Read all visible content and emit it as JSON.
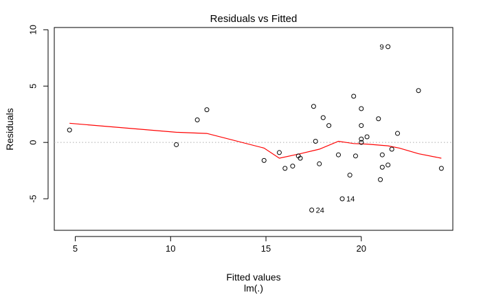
{
  "chart_data": {
    "type": "scatter",
    "title": "Residuals vs Fitted",
    "xlabel": "Fitted values",
    "xlabel_sub": "lm(.)",
    "ylabel": "Residuals",
    "xlim": [
      3.9,
      24.8
    ],
    "ylim": [
      -7.8,
      10.2
    ],
    "x_ticks": [
      5,
      10,
      15,
      20
    ],
    "x_tick_labels": [
      "5",
      "10",
      "15",
      "20"
    ],
    "y_ticks": [
      -5,
      0,
      5,
      10
    ],
    "y_tick_labels": [
      "-5",
      "0",
      "5",
      "10"
    ],
    "grid": false,
    "reference_line": {
      "y": 0,
      "style": "dotted",
      "color": "#aaaaaa"
    },
    "points": [
      {
        "x": 4.7,
        "y": 1.1
      },
      {
        "x": 10.3,
        "y": -0.2
      },
      {
        "x": 11.4,
        "y": 2.0
      },
      {
        "x": 11.9,
        "y": 2.9
      },
      {
        "x": 14.9,
        "y": -1.6
      },
      {
        "x": 15.7,
        "y": -0.9
      },
      {
        "x": 16.0,
        "y": -2.3
      },
      {
        "x": 16.4,
        "y": -2.1
      },
      {
        "x": 16.7,
        "y": -1.2
      },
      {
        "x": 16.8,
        "y": -1.4
      },
      {
        "x": 17.4,
        "y": -6.0,
        "label": "24"
      },
      {
        "x": 17.5,
        "y": 3.2
      },
      {
        "x": 17.6,
        "y": 0.1
      },
      {
        "x": 17.8,
        "y": -1.9
      },
      {
        "x": 18.0,
        "y": 2.2
      },
      {
        "x": 18.3,
        "y": 1.5
      },
      {
        "x": 18.8,
        "y": -1.1
      },
      {
        "x": 19.0,
        "y": -5.0,
        "label": "14"
      },
      {
        "x": 19.4,
        "y": -2.9
      },
      {
        "x": 19.6,
        "y": 4.1
      },
      {
        "x": 19.7,
        "y": -1.2
      },
      {
        "x": 20.0,
        "y": 3.0
      },
      {
        "x": 20.0,
        "y": 1.5
      },
      {
        "x": 20.0,
        "y": 0.3
      },
      {
        "x": 20.0,
        "y": 0.0
      },
      {
        "x": 20.3,
        "y": 0.5
      },
      {
        "x": 20.9,
        "y": 2.1
      },
      {
        "x": 21.0,
        "y": -3.3
      },
      {
        "x": 21.1,
        "y": -1.1
      },
      {
        "x": 21.1,
        "y": -2.2
      },
      {
        "x": 21.4,
        "y": 8.5,
        "label": "9"
      },
      {
        "x": 21.4,
        "y": -2.0
      },
      {
        "x": 21.6,
        "y": -0.6
      },
      {
        "x": 21.9,
        "y": 0.8
      },
      {
        "x": 23.0,
        "y": 4.6
      },
      {
        "x": 24.2,
        "y": -2.3
      }
    ],
    "smoother": {
      "color": "#ff0000",
      "x": [
        4.7,
        10.3,
        11.9,
        14.9,
        15.7,
        16.8,
        17.8,
        18.8,
        19.6,
        20.3,
        21.4,
        22.0,
        23.0,
        24.2
      ],
      "y": [
        1.7,
        0.9,
        0.8,
        -0.5,
        -1.4,
        -1.0,
        -0.6,
        0.1,
        -0.1,
        -0.15,
        -0.3,
        -0.5,
        -1.0,
        -1.4
      ]
    }
  }
}
